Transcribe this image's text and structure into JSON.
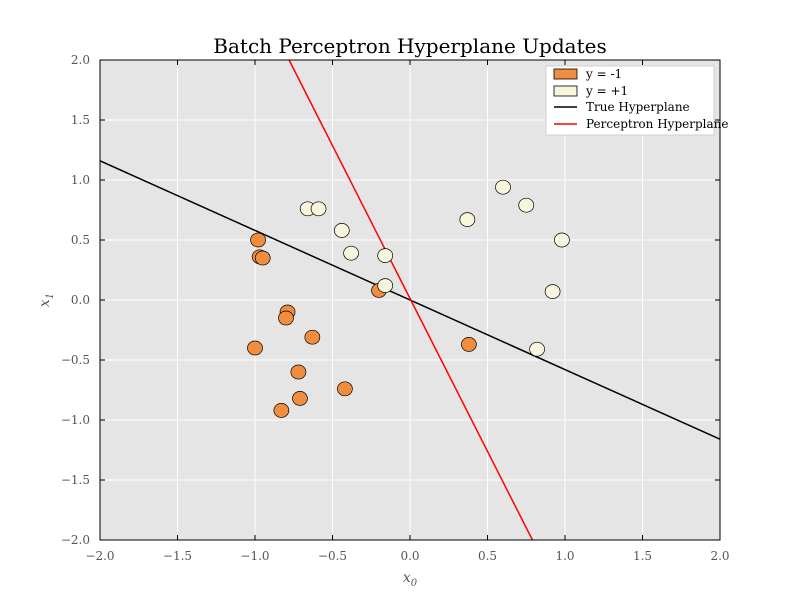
{
  "chart_data": {
    "type": "scatter",
    "title": "Batch Perceptron Hyperplane Updates",
    "xlabel": "x0",
    "ylabel": "x1",
    "xlim": [
      -2.0,
      2.0
    ],
    "ylim": [
      -2.0,
      2.0
    ],
    "x_ticks": [
      -2.0,
      -1.5,
      -1.0,
      -0.5,
      0.0,
      0.5,
      1.0,
      1.5,
      2.0
    ],
    "y_ticks": [
      -2.0,
      -1.5,
      -1.0,
      -0.5,
      0.0,
      0.5,
      1.0,
      1.5,
      2.0
    ],
    "x_tick_labels": [
      "−2.0",
      "−1.5",
      "−1.0",
      "−0.5",
      "0.0",
      "0.5",
      "1.0",
      "1.5",
      "2.0"
    ],
    "y_tick_labels": [
      "−2.0",
      "−1.5",
      "−1.0",
      "−0.5",
      "0.0",
      "0.5",
      "1.0",
      "1.5",
      "2.0"
    ],
    "grid": true,
    "legend_position": "top-right",
    "series": [
      {
        "name": "y = -1",
        "kind": "points",
        "color": "#f08d3f",
        "points": [
          [
            -0.98,
            0.5
          ],
          [
            -0.97,
            0.36
          ],
          [
            -0.95,
            0.35
          ],
          [
            -1.0,
            -0.4
          ],
          [
            -0.79,
            -0.1
          ],
          [
            -0.8,
            -0.15
          ],
          [
            -0.63,
            -0.31
          ],
          [
            -0.72,
            -0.6
          ],
          [
            -0.71,
            -0.82
          ],
          [
            -0.83,
            -0.92
          ],
          [
            -0.42,
            -0.74
          ],
          [
            -0.2,
            0.08
          ],
          [
            0.38,
            -0.37
          ]
        ]
      },
      {
        "name": "y = +1",
        "kind": "points",
        "color": "#f7f6dc",
        "points": [
          [
            -0.66,
            0.76
          ],
          [
            -0.59,
            0.76
          ],
          [
            -0.44,
            0.58
          ],
          [
            -0.38,
            0.39
          ],
          [
            -0.16,
            0.37
          ],
          [
            -0.16,
            0.12
          ],
          [
            0.37,
            0.67
          ],
          [
            0.6,
            0.94
          ],
          [
            0.75,
            0.79
          ],
          [
            0.98,
            0.5
          ],
          [
            0.92,
            0.07
          ],
          [
            0.82,
            -0.41
          ]
        ]
      },
      {
        "name": "True Hyperplane",
        "kind": "line",
        "color": "#000000",
        "points": [
          [
            -2.0,
            1.16
          ],
          [
            2.0,
            -1.16
          ]
        ]
      },
      {
        "name": "Perceptron Hyperplane",
        "kind": "line",
        "color": "#ff0000",
        "points": [
          [
            -0.78,
            2.0
          ],
          [
            0.79,
            -2.0
          ]
        ]
      }
    ]
  }
}
